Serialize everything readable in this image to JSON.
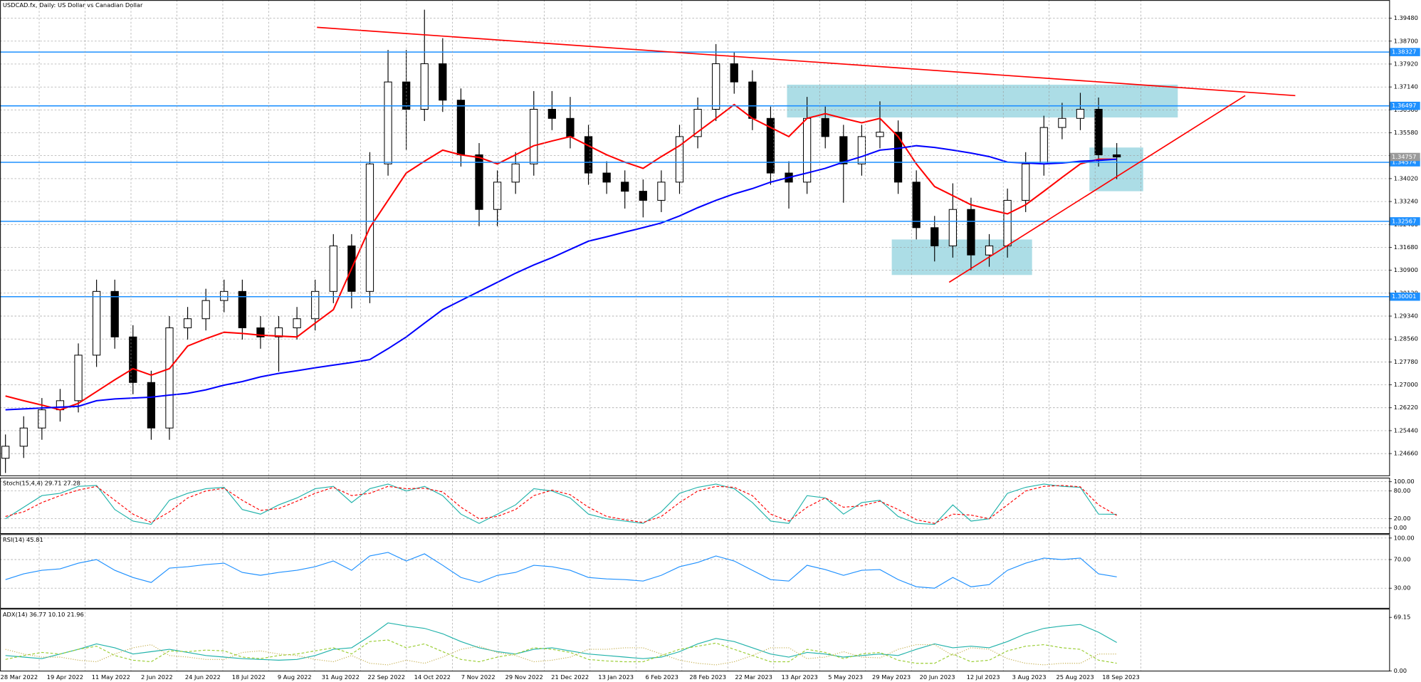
{
  "chart_data": [
    {
      "type": "candlestick",
      "title": "USDCAD.fx, Daily:  US Dollar vs Canadian Dollar",
      "open": [
        1.245,
        1.2491,
        1.2553,
        1.2615,
        1.2646,
        1.2801,
        1.3018,
        1.2863,
        1.2708,
        1.2553,
        1.2894,
        1.2925,
        1.2987,
        1.3018,
        1.2894,
        1.2863,
        1.2894,
        1.2925,
        1.3018,
        1.3173,
        1.3018,
        1.3452,
        1.3731,
        1.3638,
        1.3793,
        1.3669,
        1.3483,
        1.3297,
        1.339,
        1.3452,
        1.3638,
        1.3607,
        1.3545,
        1.3421,
        1.339,
        1.3359,
        1.3328,
        1.339,
        1.3545,
        1.3638,
        1.3793,
        1.3731,
        1.3607,
        1.3421,
        1.339,
        1.3607,
        1.3545,
        1.3452,
        1.3545,
        1.356,
        1.339,
        1.3235,
        1.3173,
        1.3297,
        1.3142,
        1.3173,
        1.3328,
        1.3452,
        1.3576,
        1.3607,
        1.3638,
        1.3483
      ],
      "high": [
        1.2531,
        1.2593,
        1.2655,
        1.2686,
        1.2841,
        1.3058,
        1.3058,
        1.2903,
        1.2748,
        1.2934,
        1.2965,
        1.3027,
        1.3058,
        1.3058,
        1.2934,
        1.2934,
        1.2965,
        1.3058,
        1.3213,
        1.3213,
        1.3492,
        1.384,
        1.384,
        1.3977,
        1.388,
        1.3709,
        1.3523,
        1.343,
        1.3492,
        1.37,
        1.37,
        1.368,
        1.3585,
        1.3461,
        1.343,
        1.3399,
        1.343,
        1.3585,
        1.3678,
        1.386,
        1.3833,
        1.3771,
        1.3647,
        1.3461,
        1.368,
        1.3647,
        1.3585,
        1.3585,
        1.3665,
        1.36,
        1.343,
        1.3275,
        1.3386,
        1.3337,
        1.3213,
        1.3368,
        1.3492,
        1.3616,
        1.366,
        1.3694,
        1.3678,
        1.3523
      ],
      "low": [
        1.24,
        1.2451,
        1.2513,
        1.2575,
        1.2606,
        1.2761,
        1.2823,
        1.2668,
        1.2513,
        1.2513,
        1.2854,
        1.2885,
        1.2947,
        1.2854,
        1.2823,
        1.2745,
        1.2854,
        1.2885,
        1.2978,
        1.296,
        1.2978,
        1.3412,
        1.35,
        1.3598,
        1.3629,
        1.3443,
        1.324,
        1.324,
        1.335,
        1.3412,
        1.3567,
        1.3505,
        1.3381,
        1.335,
        1.33,
        1.327,
        1.3288,
        1.335,
        1.3505,
        1.3598,
        1.3691,
        1.3567,
        1.3381,
        1.33,
        1.335,
        1.3505,
        1.332,
        1.3412,
        1.3505,
        1.335,
        1.3195,
        1.312,
        1.3133,
        1.309,
        1.3102,
        1.3133,
        1.3288,
        1.3412,
        1.3536,
        1.3567,
        1.3443,
        1.34
      ],
      "close": [
        1.2491,
        1.2553,
        1.2615,
        1.2646,
        1.2801,
        1.3018,
        1.2863,
        1.2708,
        1.2553,
        1.2894,
        1.2925,
        1.2987,
        1.3018,
        1.2894,
        1.2863,
        1.2894,
        1.2925,
        1.3018,
        1.3173,
        1.3018,
        1.3452,
        1.3731,
        1.3638,
        1.3793,
        1.3669,
        1.3483,
        1.3297,
        1.339,
        1.3452,
        1.3638,
        1.3607,
        1.3545,
        1.3421,
        1.339,
        1.3359,
        1.3328,
        1.339,
        1.3545,
        1.3638,
        1.3793,
        1.3731,
        1.3607,
        1.3421,
        1.339,
        1.3607,
        1.3545,
        1.3452,
        1.3545,
        1.356,
        1.339,
        1.3235,
        1.3173,
        1.3297,
        1.3142,
        1.3173,
        1.3328,
        1.3452,
        1.3576,
        1.3607,
        1.3638,
        1.3483,
        1.34757
      ],
      "up_color": "#ffffff",
      "down_color": "#000000",
      "overlays": [
        {
          "color": "#ff0000",
          "values": [
            1.2662,
            1.2646,
            1.2631,
            1.2615,
            1.2637,
            1.2677,
            1.2717,
            1.2755,
            1.2733,
            1.2755,
            1.2832,
            1.2857,
            1.2879,
            1.2875,
            1.2869,
            1.2866,
            1.2863,
            1.291,
            1.2956,
            1.3096,
            1.3235,
            1.3328,
            1.3421,
            1.3461,
            1.3499,
            1.3483,
            1.3474,
            1.3452,
            1.3483,
            1.3514,
            1.353,
            1.3545,
            1.3514,
            1.3483,
            1.3458,
            1.3437,
            1.3477,
            1.3514,
            1.3561,
            1.3607,
            1.3654,
            1.3607,
            1.3576,
            1.3545,
            1.3607,
            1.3623,
            1.3607,
            1.3592,
            1.3607,
            1.3545,
            1.3452,
            1.3375,
            1.3344,
            1.3313,
            1.3297,
            1.3282,
            1.3313,
            1.3359,
            1.3406,
            1.3452,
            1.3468,
            1.3468
          ]
        },
        {
          "color": "#0000ff",
          "values": [
            1.2615,
            1.2618,
            1.2621,
            1.2624,
            1.2627,
            1.2646,
            1.2652,
            1.2655,
            1.2658,
            1.2665,
            1.2671,
            1.2683,
            1.2699,
            1.2711,
            1.2727,
            1.2739,
            1.2748,
            1.2758,
            1.2767,
            1.2776,
            1.2786,
            1.2823,
            1.2863,
            1.291,
            1.2956,
            1.2987,
            1.3018,
            1.3049,
            1.308,
            1.3108,
            1.3133,
            1.3161,
            1.3189,
            1.3204,
            1.322,
            1.3235,
            1.3251,
            1.3275,
            1.3303,
            1.3328,
            1.335,
            1.3368,
            1.339,
            1.3406,
            1.3421,
            1.3437,
            1.3458,
            1.3477,
            1.3499,
            1.3505,
            1.3514,
            1.3508,
            1.3499,
            1.3489,
            1.3477,
            1.3458,
            1.3455,
            1.3452,
            1.3455,
            1.3461,
            1.3464,
            1.3468
          ]
        }
      ],
      "hlines": [
        1.38327,
        1.36497,
        1.34574,
        1.32567,
        1.30001
      ],
      "hline_color": "#1e90ff",
      "current_price": 1.34757,
      "current_price_color": "#9a9a9a",
      "ylim": [
        1.2392,
        1.401
      ],
      "yticks": [
        {
          "value": 1.3948,
          "label": "1.39480"
        },
        {
          "value": 1.387,
          "label": "1.38700"
        },
        {
          "value": 1.3792,
          "label": "1.37920"
        },
        {
          "value": 1.3714,
          "label": "1.37140"
        },
        {
          "value": 1.3636,
          "label": "1.36360"
        },
        {
          "value": 1.3558,
          "label": "1.35580"
        },
        {
          "value": 1.348,
          "label": "1.34800"
        },
        {
          "value": 1.3402,
          "label": "1.34020"
        },
        {
          "value": 1.3324,
          "label": "1.33240"
        },
        {
          "value": 1.3246,
          "label": "1.32460"
        },
        {
          "value": 1.3168,
          "label": "1.31680"
        },
        {
          "value": 1.309,
          "label": "1.30900"
        },
        {
          "value": 1.3012,
          "label": "1.30120"
        },
        {
          "value": 1.2934,
          "label": "1.29340"
        },
        {
          "value": 1.2856,
          "label": "1.28560"
        },
        {
          "value": 1.2778,
          "label": "1.27780"
        },
        {
          "value": 1.27,
          "label": "1.27000"
        },
        {
          "value": 1.2622,
          "label": "1.26220"
        },
        {
          "value": 1.2544,
          "label": "1.25440"
        },
        {
          "value": 1.2466,
          "label": "1.24660"
        }
      ],
      "xticks": [
        "28 Mar 2022",
        "19 Apr 2022",
        "11 May 2022",
        "2 Jun 2022",
        "24 Jun 2022",
        "18 Jul 2022",
        "9 Aug 2022",
        "31 Aug 2022",
        "22 Sep 2022",
        "14 Oct 2022",
        "7 Nov 2022",
        "29 Nov 2022",
        "21 Dec 2022",
        "13 Jan 2023",
        "6 Feb 2023",
        "28 Feb 2023",
        "22 Mar 2023",
        "13 Apr 2023",
        "5 May 2023",
        "29 May 2023",
        "20 Jun 2023",
        "12 Jul 2023",
        "3 Aug 2023",
        "25 Aug 2023",
        "18 Sep 2023"
      ],
      "grid": true
    },
    {
      "type": "line",
      "title": "Stoch(15,4,4) 29.71 27.28",
      "series": [
        {
          "color": "#20b2aa",
          "style": "solid",
          "values": [
            20,
            45,
            70,
            75,
            90,
            92,
            40,
            15,
            8,
            60,
            75,
            85,
            88,
            40,
            30,
            50,
            65,
            85,
            90,
            55,
            85,
            95,
            80,
            90,
            70,
            30,
            10,
            30,
            50,
            85,
            80,
            65,
            30,
            20,
            15,
            10,
            35,
            75,
            88,
            95,
            85,
            55,
            15,
            10,
            70,
            65,
            30,
            55,
            60,
            25,
            10,
            8,
            50,
            15,
            20,
            75,
            88,
            95,
            90,
            88,
            30,
            29.71
          ]
        },
        {
          "color": "#ff0000",
          "style": "dashed",
          "values": [
            25,
            35,
            55,
            70,
            82,
            90,
            60,
            30,
            12,
            35,
            65,
            80,
            86,
            60,
            38,
            42,
            58,
            75,
            88,
            70,
            75,
            90,
            85,
            86,
            78,
            45,
            20,
            25,
            40,
            70,
            82,
            72,
            45,
            25,
            18,
            12,
            25,
            55,
            80,
            90,
            88,
            70,
            30,
            15,
            45,
            65,
            45,
            48,
            58,
            40,
            18,
            10,
            30,
            28,
            20,
            50,
            80,
            90,
            92,
            89,
            50,
            27.28
          ]
        }
      ],
      "ylim": [
        -12,
        108
      ],
      "yticks": [
        {
          "value": 100,
          "label": "100.00"
        },
        {
          "value": 80,
          "label": "80.00"
        },
        {
          "value": 20,
          "label": "20.00"
        },
        {
          "value": 0,
          "label": "0.00"
        }
      ],
      "grid": true
    },
    {
      "type": "line",
      "title": "RSI(14) 45.81",
      "series": [
        {
          "color": "#1e90ff",
          "style": "solid",
          "values": [
            42,
            50,
            55,
            57,
            65,
            70,
            55,
            45,
            38,
            58,
            60,
            63,
            65,
            52,
            48,
            52,
            55,
            60,
            68,
            55,
            75,
            80,
            68,
            78,
            62,
            45,
            38,
            48,
            52,
            62,
            60,
            55,
            45,
            43,
            42,
            40,
            48,
            60,
            66,
            75,
            68,
            55,
            42,
            40,
            62,
            56,
            48,
            55,
            56,
            42,
            32,
            30,
            45,
            32,
            35,
            55,
            65,
            72,
            70,
            72,
            50,
            45.81
          ]
        }
      ],
      "ylim": [
        2,
        105
      ],
      "yticks": [
        {
          "value": 100,
          "label": "100.00"
        },
        {
          "value": 70,
          "label": "70.00"
        },
        {
          "value": 30,
          "label": "30.00"
        }
      ],
      "grid": true
    },
    {
      "type": "line",
      "title": "ADX(14) 36.77 10.10 21.96",
      "series": [
        {
          "color": "#20b2aa",
          "style": "solid",
          "values": [
            20,
            18,
            16,
            22,
            28,
            35,
            30,
            22,
            25,
            28,
            24,
            20,
            18,
            16,
            15,
            14,
            15,
            20,
            28,
            30,
            45,
            62,
            58,
            55,
            48,
            38,
            30,
            25,
            22,
            28,
            30,
            26,
            22,
            20,
            18,
            16,
            18,
            25,
            35,
            42,
            38,
            30,
            22,
            18,
            24,
            22,
            18,
            20,
            22,
            20,
            28,
            35,
            30,
            32,
            30,
            38,
            48,
            55,
            58,
            60,
            50,
            36.77
          ]
        },
        {
          "color": "#9acd32",
          "style": "dashed",
          "values": [
            15,
            20,
            24,
            22,
            28,
            32,
            20,
            14,
            12,
            26,
            25,
            27,
            26,
            18,
            16,
            20,
            22,
            26,
            30,
            22,
            38,
            40,
            30,
            35,
            25,
            15,
            12,
            18,
            22,
            30,
            28,
            24,
            15,
            13,
            12,
            12,
            20,
            28,
            32,
            36,
            28,
            20,
            12,
            12,
            28,
            24,
            16,
            22,
            24,
            14,
            10,
            10,
            22,
            12,
            14,
            26,
            32,
            34,
            30,
            28,
            14,
            10.1
          ]
        },
        {
          "color": "#c8b45a",
          "style": "dotted",
          "values": [
            28,
            22,
            18,
            18,
            14,
            12,
            22,
            30,
            34,
            20,
            18,
            15,
            15,
            24,
            26,
            22,
            20,
            15,
            12,
            20,
            10,
            8,
            14,
            10,
            18,
            28,
            32,
            24,
            20,
            12,
            14,
            18,
            28,
            28,
            30,
            30,
            22,
            14,
            10,
            8,
            12,
            20,
            30,
            30,
            16,
            18,
            25,
            18,
            17,
            28,
            34,
            34,
            20,
            30,
            28,
            16,
            10,
            8,
            10,
            10,
            22,
            21.96
          ]
        }
      ],
      "ylim": [
        0,
        79.7
      ],
      "yticks": [
        69.15,
        {
          "value": 0,
          "label": "0.00"
        }
      ],
      "grid": false
    }
  ]
}
